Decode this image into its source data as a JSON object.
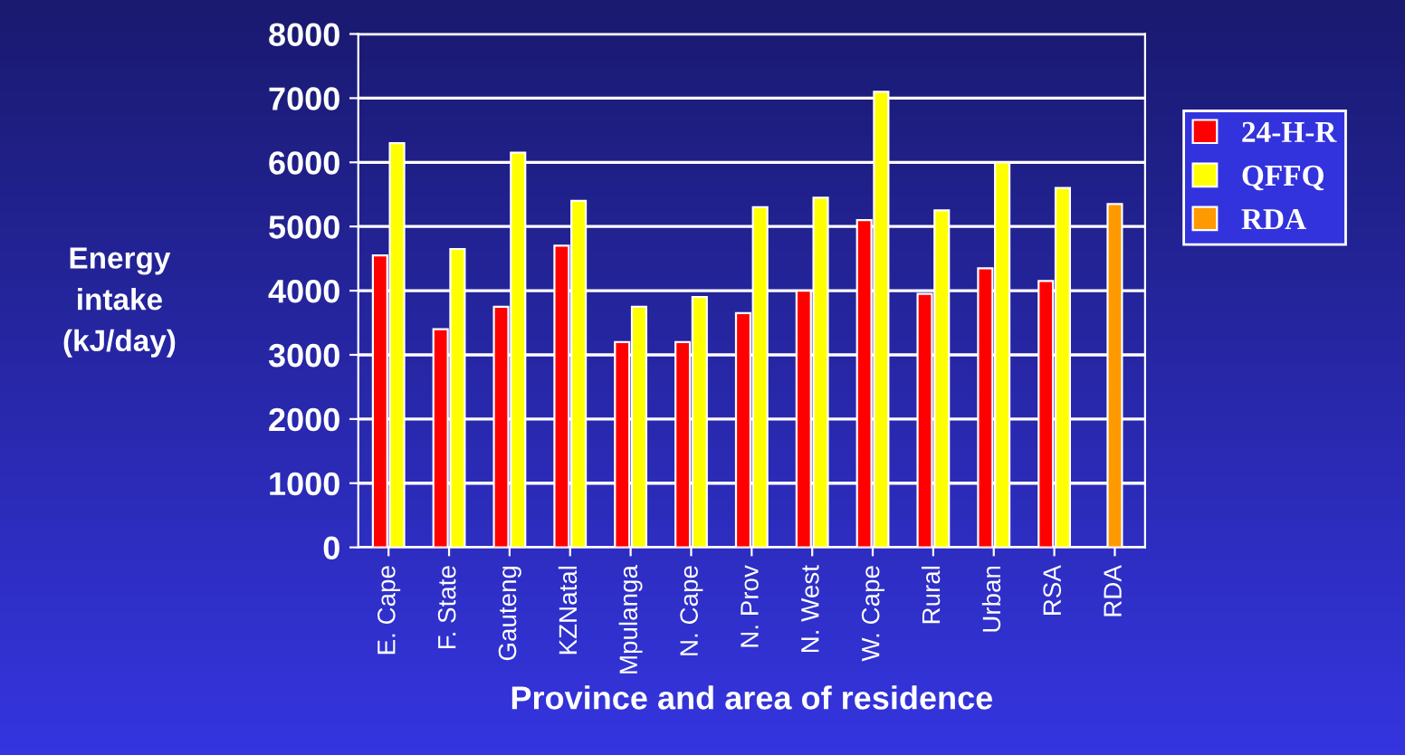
{
  "chart_data": {
    "type": "bar",
    "xlabel": "Province and area of residence",
    "ylabel": "Energy\nintake\n(kJ/day)",
    "categories": [
      "E. Cape",
      "F. State",
      "Gauteng",
      "KZNatal",
      "Mpulanga",
      "N. Cape",
      "N. Prov",
      "N. West",
      "W. Cape",
      "Rural",
      "Urban",
      "RSA",
      "RDA"
    ],
    "series": [
      {
        "name": "24-H-R",
        "color": "#ff0000",
        "values": [
          4550,
          3400,
          3750,
          4700,
          3200,
          3200,
          3650,
          4000,
          5100,
          3950,
          4350,
          4150,
          null
        ]
      },
      {
        "name": "QFFQ",
        "color": "#ffff00",
        "values": [
          6300,
          4650,
          6150,
          5400,
          3750,
          3900,
          5300,
          5450,
          7100,
          5250,
          6000,
          5600,
          null
        ]
      },
      {
        "name": "RDA",
        "color": "#ff9900",
        "values": [
          null,
          null,
          null,
          null,
          null,
          null,
          null,
          null,
          null,
          null,
          null,
          null,
          5350
        ]
      }
    ],
    "ylim": [
      0,
      8000
    ],
    "yticks": [
      0,
      1000,
      2000,
      3000,
      4000,
      5000,
      6000,
      7000,
      8000
    ],
    "grid": "y",
    "legend": "right"
  }
}
